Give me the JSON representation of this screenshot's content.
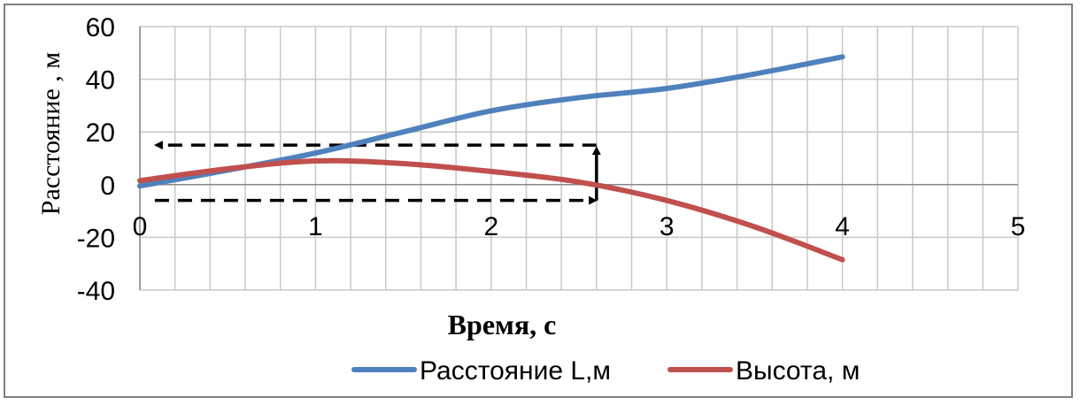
{
  "chart_data": {
    "type": "line",
    "xlabel": "Время, с",
    "ylabel": "Расстояние , м",
    "xlim": [
      0,
      5
    ],
    "ylim": [
      -40,
      60
    ],
    "x_ticks": [
      "0",
      "1",
      "2",
      "3",
      "4",
      "5"
    ],
    "y_ticks": [
      "60",
      "40",
      "20",
      "0",
      "-20",
      "-40"
    ],
    "grid": true,
    "legend_position": "bottom",
    "series": [
      {
        "name": "Расстояние L,м",
        "color": "#4f81bd",
        "x": [
          0,
          0.5,
          1,
          1.5,
          2,
          2.5,
          3,
          3.5,
          4
        ],
        "y": [
          -0.5,
          5.5,
          12,
          20,
          28,
          33,
          36.5,
          42,
          48.5
        ]
      },
      {
        "name": "Высота, м",
        "color": "#c0504d",
        "x": [
          0,
          0.5,
          1,
          1.5,
          2,
          2.5,
          3,
          3.5,
          4
        ],
        "y": [
          1.5,
          6,
          9,
          8,
          5,
          1,
          -6,
          -16,
          -28.5
        ]
      }
    ],
    "annotations": [
      {
        "type": "arrow",
        "style": "dashed",
        "from": [
          2.6,
          -6
        ],
        "to": [
          0.05,
          15
        ]
      }
    ]
  }
}
